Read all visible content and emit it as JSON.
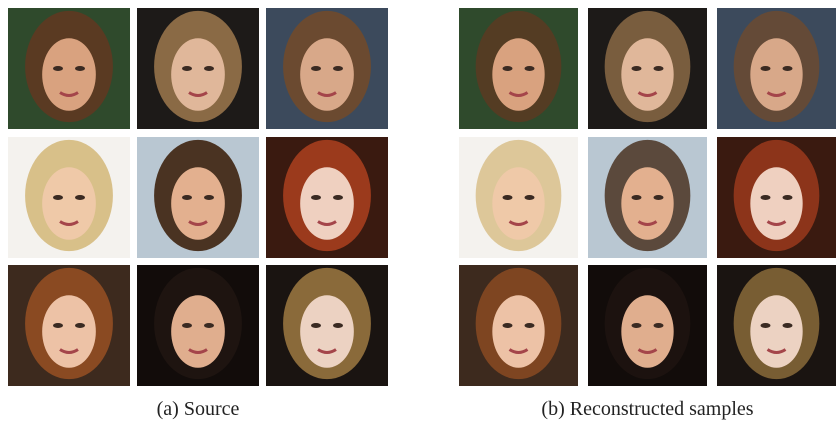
{
  "figure": {
    "panels": [
      {
        "caption": "(a) Source"
      },
      {
        "caption": "(b) Reconstructed samples"
      }
    ]
  }
}
